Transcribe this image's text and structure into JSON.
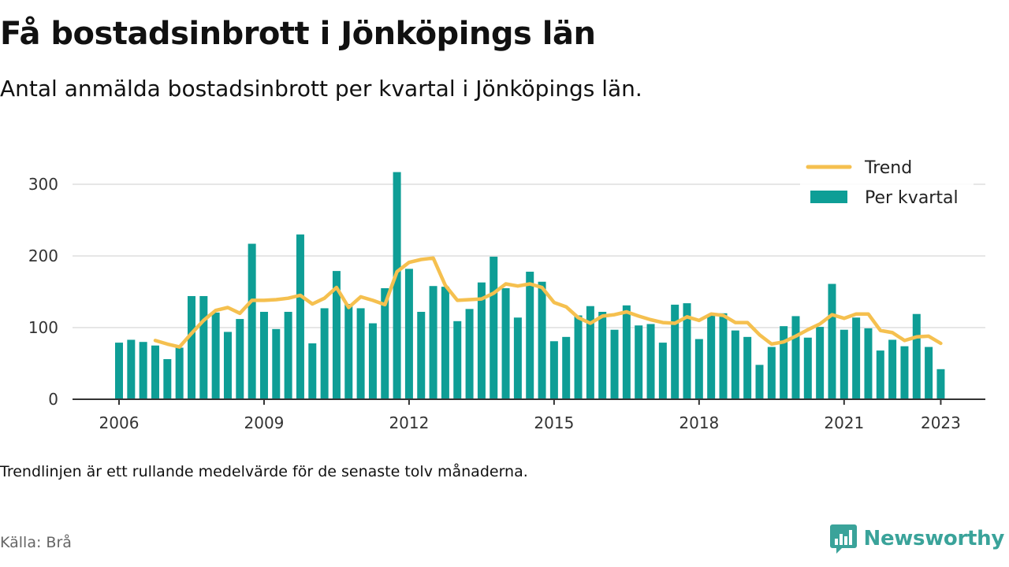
{
  "header": {
    "title": "Få bostadsinbrott i Jönköpings län",
    "subtitle": "Antal anmälda bostadsinbrott per kvartal i Jönköpings län."
  },
  "footer": {
    "note": "Trendlinjen är ett rullande medelvärde för de senaste tolv månaderna.",
    "source": "Källa: Brå",
    "brand": "Newsworthy"
  },
  "colors": {
    "bars": "#0e9e96",
    "trend": "#f5c04f",
    "grid": "#dddddd",
    "axis": "#333333",
    "brand": "#3aa39a"
  },
  "chart_data": {
    "type": "bar",
    "x_start": "2006",
    "x_step": "quarter",
    "xticks": [
      "2006",
      "2009",
      "2012",
      "2015",
      "2018",
      "2021",
      "2023"
    ],
    "yticks": [
      0,
      100,
      200,
      300
    ],
    "ylim": [
      0,
      330
    ],
    "grid": true,
    "legend_position": "top-right",
    "series": [
      {
        "name": "Per kvartal",
        "type": "bar",
        "values": [
          79,
          83,
          80,
          75,
          56,
          72,
          144,
          144,
          121,
          94,
          112,
          217,
          122,
          98,
          122,
          230,
          78,
          127,
          179,
          133,
          127,
          106,
          155,
          317,
          182,
          122,
          158,
          157,
          109,
          126,
          163,
          199,
          155,
          114,
          178,
          164,
          81,
          87,
          117,
          130,
          122,
          97,
          131,
          103,
          105,
          79,
          132,
          134,
          84,
          118,
          120,
          96,
          87,
          48,
          73,
          102,
          116,
          86,
          101,
          161,
          97,
          114,
          99,
          68,
          83,
          74,
          119,
          73,
          42
        ]
      },
      {
        "name": "Trend",
        "type": "line",
        "values": [
          null,
          null,
          null,
          82,
          77,
          73,
          92,
          110,
          124,
          128,
          120,
          138,
          138,
          139,
          141,
          145,
          133,
          141,
          156,
          128,
          143,
          138,
          132,
          178,
          191,
          195,
          197,
          159,
          138,
          139,
          140,
          148,
          161,
          158,
          161,
          156,
          135,
          129,
          114,
          106,
          116,
          118,
          122,
          116,
          111,
          107,
          106,
          115,
          110,
          119,
          117,
          107,
          107,
          90,
          77,
          80,
          88,
          97,
          105,
          118,
          113,
          119,
          119,
          96,
          93,
          82,
          87,
          88,
          78
        ]
      }
    ]
  }
}
